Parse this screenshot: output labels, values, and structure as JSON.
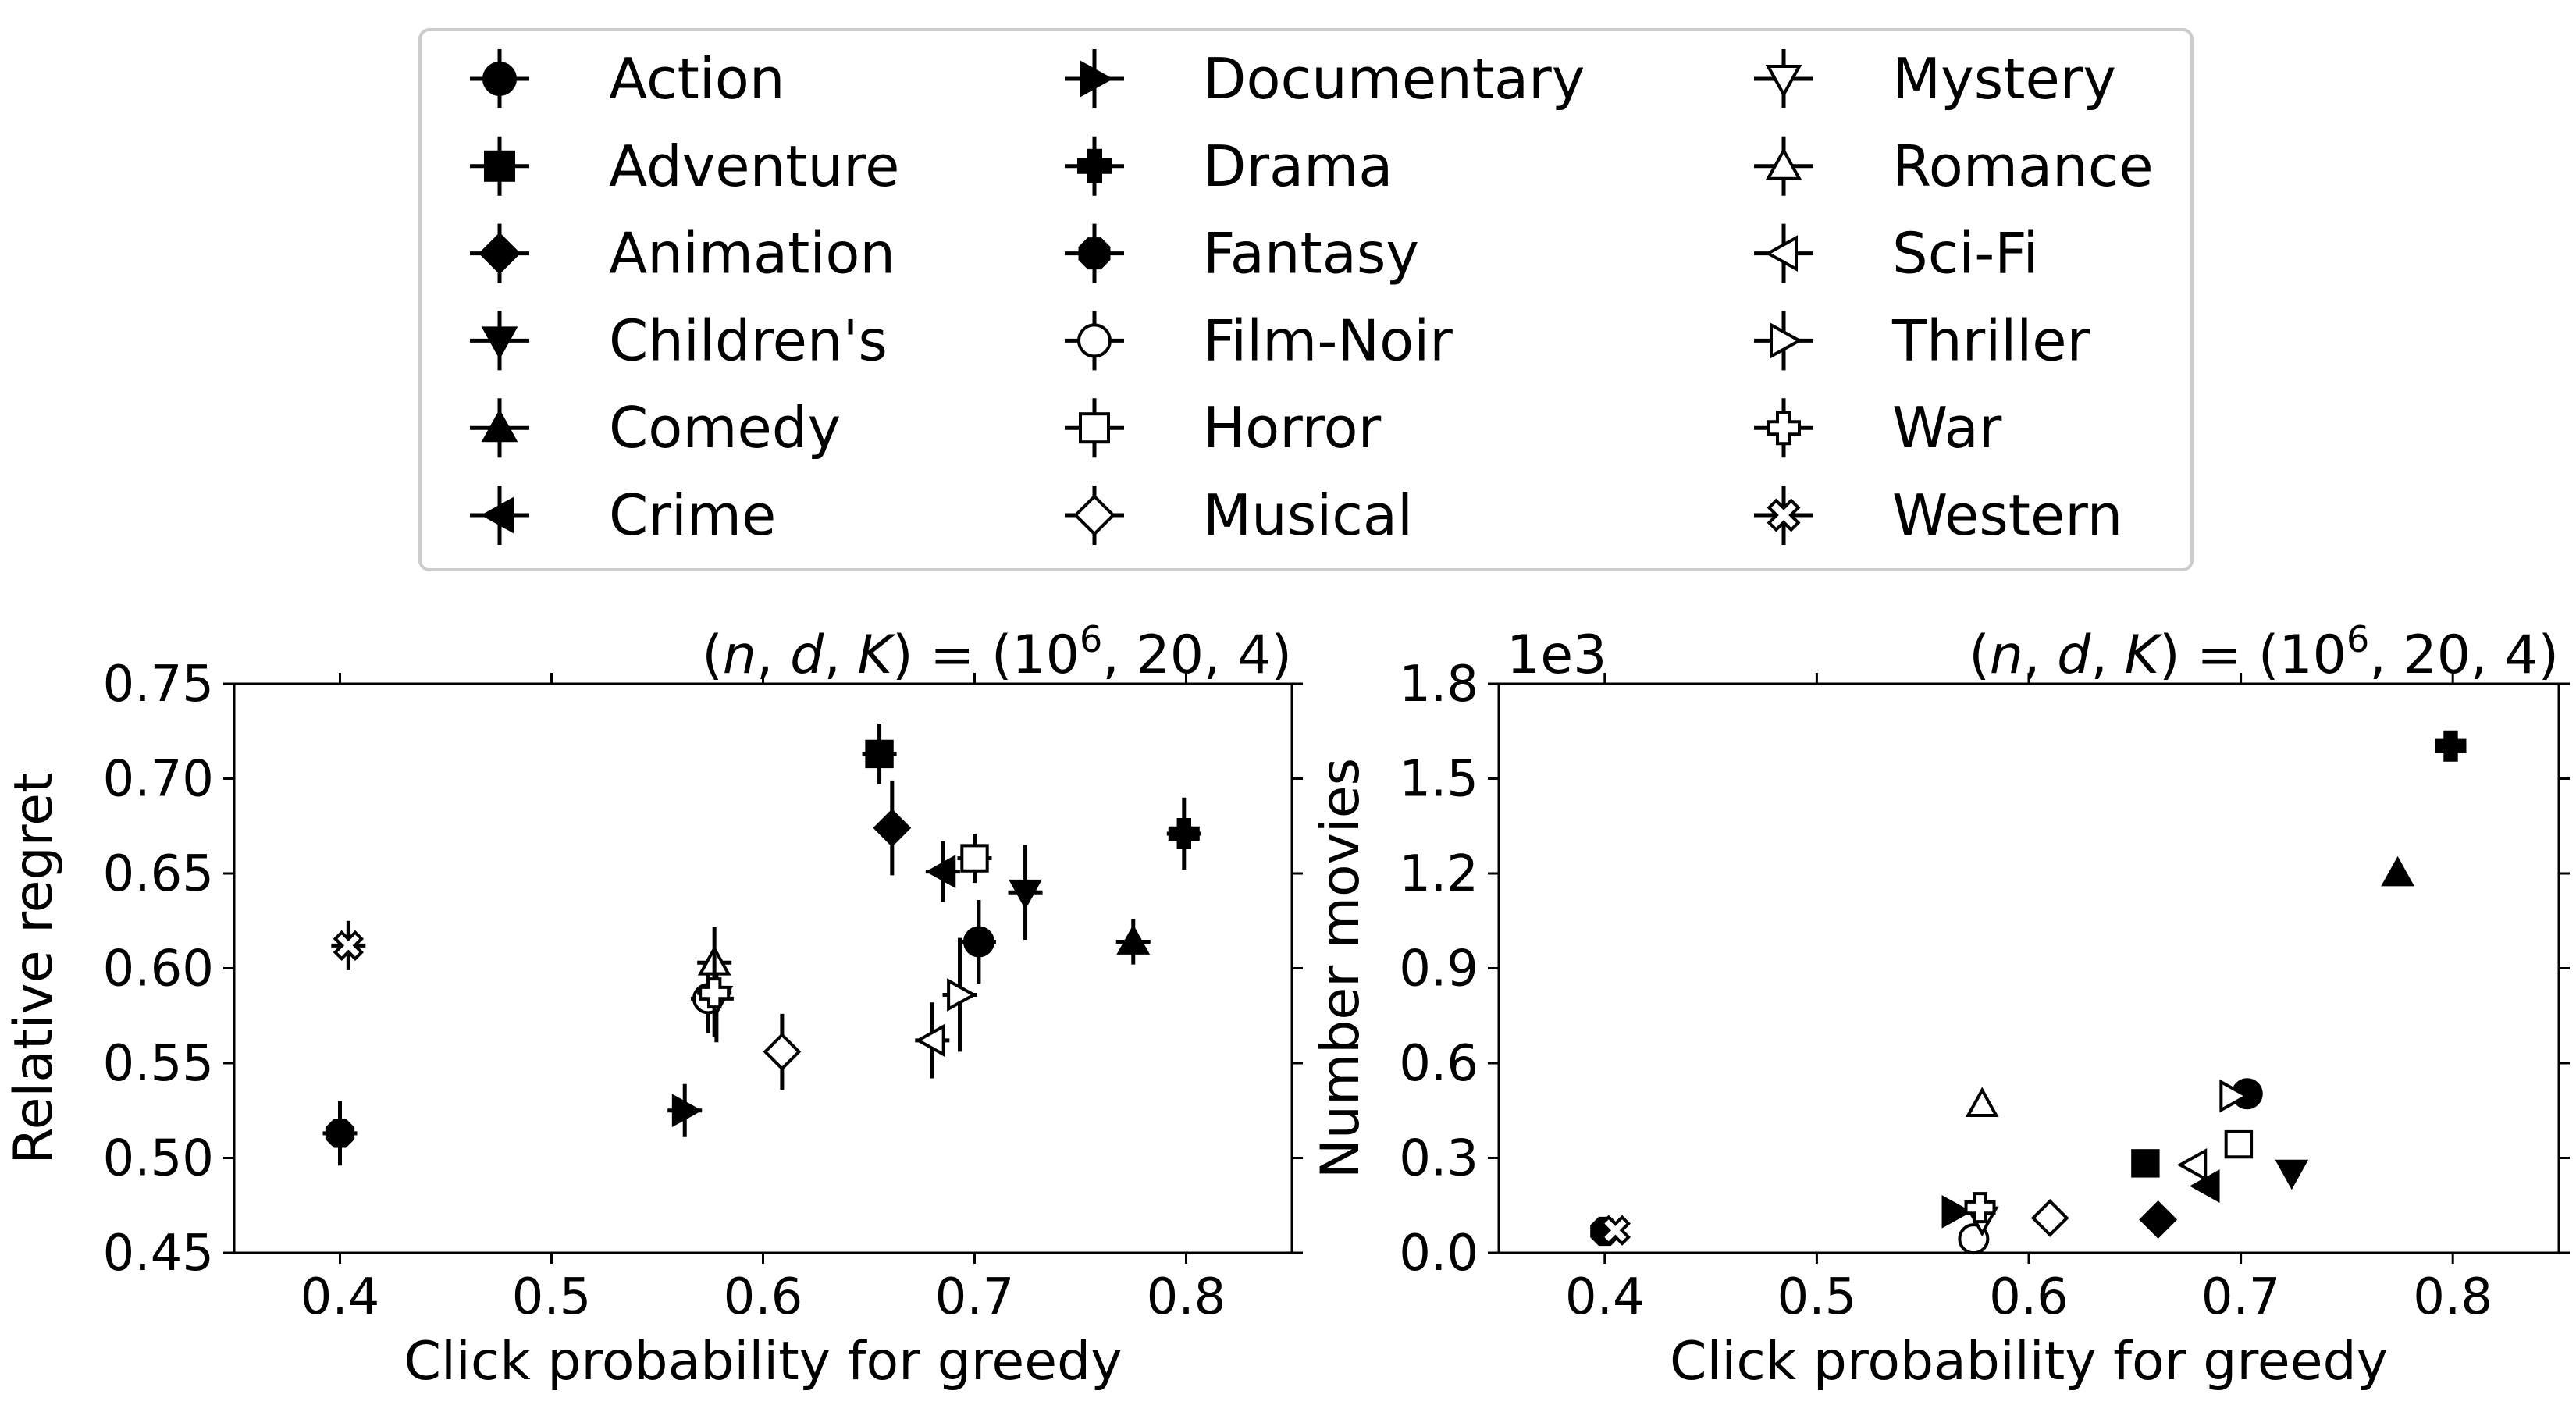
{
  "legend": {
    "entries": [
      {
        "name": "Action",
        "marker": "circle",
        "fill": "filled"
      },
      {
        "name": "Adventure",
        "marker": "square",
        "fill": "filled"
      },
      {
        "name": "Animation",
        "marker": "diamond",
        "fill": "filled"
      },
      {
        "name": "Children's",
        "marker": "triangle-down",
        "fill": "filled"
      },
      {
        "name": "Comedy",
        "marker": "triangle-up",
        "fill": "filled"
      },
      {
        "name": "Crime",
        "marker": "triangle-left",
        "fill": "filled"
      },
      {
        "name": "Documentary",
        "marker": "triangle-right",
        "fill": "filled"
      },
      {
        "name": "Drama",
        "marker": "plus",
        "fill": "filled"
      },
      {
        "name": "Fantasy",
        "marker": "octagon",
        "fill": "filled"
      },
      {
        "name": "Film-Noir",
        "marker": "circle",
        "fill": "open"
      },
      {
        "name": "Horror",
        "marker": "square",
        "fill": "open"
      },
      {
        "name": "Musical",
        "marker": "diamond",
        "fill": "open"
      },
      {
        "name": "Mystery",
        "marker": "triangle-down",
        "fill": "open"
      },
      {
        "name": "Romance",
        "marker": "triangle-up",
        "fill": "open"
      },
      {
        "name": "Sci-Fi",
        "marker": "triangle-left",
        "fill": "open"
      },
      {
        "name": "Thriller",
        "marker": "triangle-right",
        "fill": "open"
      },
      {
        "name": "War",
        "marker": "plus",
        "fill": "open"
      },
      {
        "name": "Western",
        "marker": "x",
        "fill": "open"
      }
    ]
  },
  "chart_data": [
    {
      "type": "scatter",
      "title": "(n, d, K) = (10⁶, 20, 4)",
      "title_parts": {
        "prefix": "(",
        "vars": [
          "n",
          "d",
          "K"
        ],
        "middle": ") = (10",
        "exponent": "6",
        "suffix": ", 20, 4)"
      },
      "xlabel": "Click probability for greedy",
      "ylabel": "Relative regret",
      "xlim": [
        0.35,
        0.85
      ],
      "ylim": [
        0.45,
        0.75
      ],
      "xticks": [
        "0.4",
        "0.5",
        "0.6",
        "0.7",
        "0.8"
      ],
      "yticks": [
        "0.45",
        "0.50",
        "0.55",
        "0.60",
        "0.65",
        "0.70",
        "0.75"
      ],
      "error_bars": true,
      "series": [
        {
          "name": "Action",
          "x": 0.702,
          "y": 0.614,
          "err": 0.022
        },
        {
          "name": "Adventure",
          "x": 0.655,
          "y": 0.713,
          "err": 0.016
        },
        {
          "name": "Animation",
          "x": 0.661,
          "y": 0.674,
          "err": 0.025
        },
        {
          "name": "Children's",
          "x": 0.724,
          "y": 0.64,
          "err": 0.025
        },
        {
          "name": "Comedy",
          "x": 0.775,
          "y": 0.614,
          "err": 0.012
        },
        {
          "name": "Crime",
          "x": 0.685,
          "y": 0.651,
          "err": 0.016
        },
        {
          "name": "Documentary",
          "x": 0.563,
          "y": 0.525,
          "err": 0.014
        },
        {
          "name": "Drama",
          "x": 0.799,
          "y": 0.671,
          "err": 0.019
        },
        {
          "name": "Fantasy",
          "x": 0.4,
          "y": 0.513,
          "err": 0.017
        },
        {
          "name": "Film-Noir",
          "x": 0.574,
          "y": 0.584,
          "err": 0.018
        },
        {
          "name": "Horror",
          "x": 0.7,
          "y": 0.658,
          "err": 0.013
        },
        {
          "name": "Musical",
          "x": 0.609,
          "y": 0.556,
          "err": 0.02
        },
        {
          "name": "Mystery",
          "x": 0.578,
          "y": 0.584,
          "err": 0.023
        },
        {
          "name": "Romance",
          "x": 0.577,
          "y": 0.603,
          "err": 0.019
        },
        {
          "name": "Sci-Fi",
          "x": 0.68,
          "y": 0.562,
          "err": 0.02
        },
        {
          "name": "Thriller",
          "x": 0.693,
          "y": 0.586,
          "err": 0.03
        },
        {
          "name": "War",
          "x": 0.577,
          "y": 0.587,
          "err": 0.023
        },
        {
          "name": "Western",
          "x": 0.404,
          "y": 0.612,
          "err": 0.013
        }
      ]
    },
    {
      "type": "scatter",
      "title": "(n, d, K) = (10⁶, 20, 4)",
      "title_parts": {
        "prefix": "(",
        "vars": [
          "n",
          "d",
          "K"
        ],
        "middle": ") = (10",
        "exponent": "6",
        "suffix": ", 20, 4)"
      },
      "xlabel": "Click probability for greedy",
      "ylabel": "Number movies",
      "scale_label": "1e3",
      "xlim": [
        0.35,
        0.85
      ],
      "ylim": [
        0.0,
        1.8
      ],
      "xticks": [
        "0.4",
        "0.5",
        "0.6",
        "0.7",
        "0.8"
      ],
      "yticks": [
        "0.0",
        "0.3",
        "0.6",
        "0.9",
        "1.2",
        "1.5",
        "1.8"
      ],
      "error_bars": false,
      "series": [
        {
          "name": "Action",
          "x": 0.703,
          "y": 0.503
        },
        {
          "name": "Adventure",
          "x": 0.655,
          "y": 0.283
        },
        {
          "name": "Animation",
          "x": 0.661,
          "y": 0.105
        },
        {
          "name": "Children's",
          "x": 0.724,
          "y": 0.254
        },
        {
          "name": "Comedy",
          "x": 0.774,
          "y": 1.2
        },
        {
          "name": "Crime",
          "x": 0.684,
          "y": 0.211
        },
        {
          "name": "Documentary",
          "x": 0.565,
          "y": 0.13
        },
        {
          "name": "Drama",
          "x": 0.799,
          "y": 1.603
        },
        {
          "name": "Fantasy",
          "x": 0.4,
          "y": 0.068
        },
        {
          "name": "Film-Noir",
          "x": 0.574,
          "y": 0.044
        },
        {
          "name": "Horror",
          "x": 0.699,
          "y": 0.343
        },
        {
          "name": "Musical",
          "x": 0.61,
          "y": 0.11
        },
        {
          "name": "Mystery",
          "x": 0.578,
          "y": 0.106
        },
        {
          "name": "Romance",
          "x": 0.578,
          "y": 0.47
        },
        {
          "name": "Sci-Fi",
          "x": 0.678,
          "y": 0.278
        },
        {
          "name": "Thriller",
          "x": 0.696,
          "y": 0.496
        },
        {
          "name": "War",
          "x": 0.577,
          "y": 0.143
        },
        {
          "name": "Western",
          "x": 0.405,
          "y": 0.071
        }
      ]
    }
  ]
}
